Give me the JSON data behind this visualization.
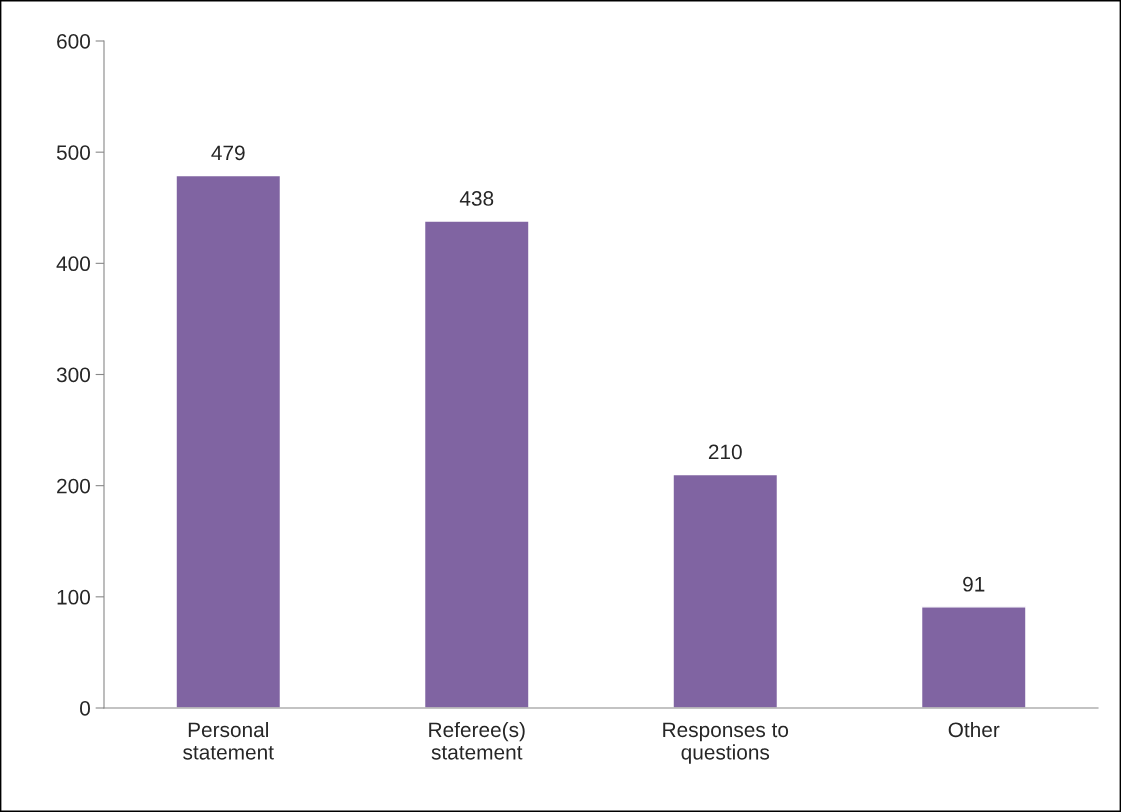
{
  "chart_data": {
    "type": "bar",
    "categories": [
      "Personal\nstatement",
      "Referee(s)\nstatement",
      "Responses to\nquestions",
      "Other"
    ],
    "values": [
      479,
      438,
      210,
      91
    ],
    "color": "#8064a2",
    "ylim": [
      0,
      600
    ],
    "yticks": [
      0,
      100,
      200,
      300,
      400,
      500,
      600
    ],
    "data_labels": true,
    "grid": false,
    "legend": false
  }
}
